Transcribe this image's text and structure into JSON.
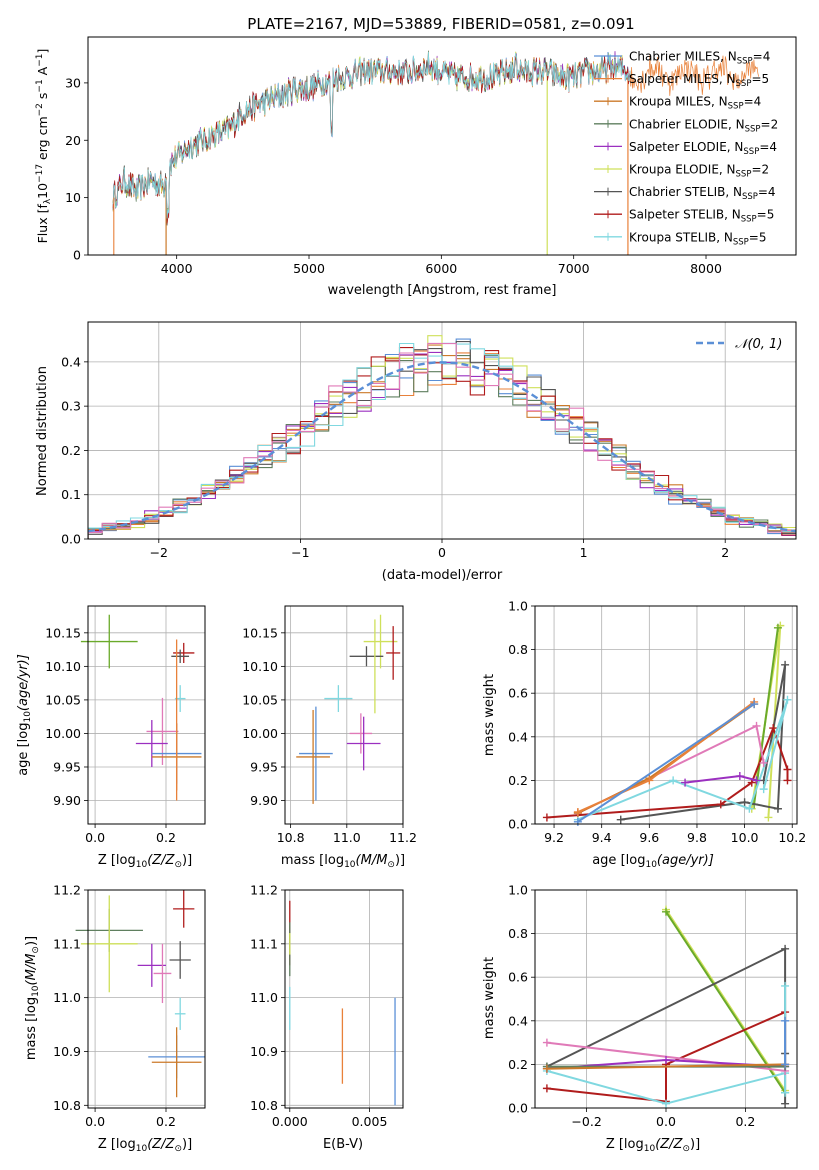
{
  "figure_title": "PLATE=2167, MJD=53889, FIBERID=0581, z=0.091",
  "colors": {
    "Chabrier MILES": "#5b8fd6",
    "Salpeter MILES": "#e8813a",
    "Kroupa MILES": "#cc7a2a",
    "Chabrier ELODIE": "#5f7f5f",
    "Salpeter ELODIE": "#9b30c0",
    "Kroupa ELODIE": "#cfe05a",
    "Chabrier STELIB": "#555555",
    "Salpeter STELIB": "#b01c1c",
    "Kroupa STELIB": "#80d8e0",
    "normal": "#5b8fd6",
    "grid": "#b0b0b0",
    "extra_pink": "#e07ab8",
    "extra_green": "#6aaa2a"
  },
  "chart_data": [
    {
      "id": "spectrum",
      "type": "line",
      "xlabel": "wavelength [Angstrom, rest frame]",
      "ylabel": "Flux [f",
      "ylabel_sub": "λ",
      "ylabel_rest": "10",
      "ylabel_sup1": "−17",
      "ylabel_rest2": " erg cm",
      "ylabel_sup2": "−2",
      "ylabel_rest3": " s",
      "ylabel_sup3": "−1",
      "ylabel_rest4": " A",
      "ylabel_sup4": "−1",
      "ylabel_end": "]",
      "xlim": [
        3330,
        8680
      ],
      "ylim": [
        0,
        38
      ],
      "xticks": [
        4000,
        5000,
        6000,
        7000,
        8000
      ],
      "yticks": [
        0,
        10,
        20,
        30
      ],
      "legend": [
        {
          "label": "Chabrier MILES, N",
          "sub": "SSP",
          "tail": "=4"
        },
        {
          "label": "Salpeter MILES, N",
          "sub": "SSP",
          "tail": "=5"
        },
        {
          "label": "Kroupa MILES, N",
          "sub": "SSP",
          "tail": "=4"
        },
        {
          "label": "Chabrier ELODIE, N",
          "sub": "SSP",
          "tail": "=2"
        },
        {
          "label": "Salpeter ELODIE, N",
          "sub": "SSP",
          "tail": "=4"
        },
        {
          "label": "Kroupa ELODIE, N",
          "sub": "SSP",
          "tail": "=2"
        },
        {
          "label": "Chabrier STELIB, N",
          "sub": "SSP",
          "tail": "=4"
        },
        {
          "label": "Salpeter STELIB, N",
          "sub": "SSP",
          "tail": "=5"
        },
        {
          "label": "Kroupa STELIB, N",
          "sub": "SSP",
          "tail": "=5"
        }
      ],
      "legend_position": "top-right",
      "continuum": [
        [
          3520,
          10
        ],
        [
          3600,
          13
        ],
        [
          3700,
          11
        ],
        [
          3800,
          13
        ],
        [
          3900,
          12
        ],
        [
          3950,
          16
        ],
        [
          4000,
          17
        ],
        [
          4100,
          19
        ],
        [
          4200,
          20
        ],
        [
          4300,
          21
        ],
        [
          4400,
          22
        ],
        [
          4500,
          25
        ],
        [
          4600,
          26
        ],
        [
          4700,
          27
        ],
        [
          4800,
          28
        ],
        [
          4900,
          29
        ],
        [
          5000,
          29
        ],
        [
          5100,
          30
        ],
        [
          5200,
          31
        ],
        [
          5300,
          31
        ],
        [
          5400,
          32
        ],
        [
          5500,
          32
        ],
        [
          5600,
          32
        ],
        [
          5700,
          32
        ],
        [
          5800,
          32
        ],
        [
          5900,
          33
        ],
        [
          6000,
          32
        ],
        [
          6100,
          31
        ],
        [
          6200,
          31
        ],
        [
          6300,
          31
        ],
        [
          6400,
          31
        ],
        [
          6500,
          32
        ],
        [
          6600,
          32
        ],
        [
          6700,
          32
        ],
        [
          6800,
          32
        ],
        [
          6900,
          31
        ],
        [
          7000,
          31
        ],
        [
          7100,
          32
        ],
        [
          7200,
          32
        ],
        [
          7300,
          33
        ],
        [
          7420,
          32
        ]
      ],
      "spectrum_range": [
        3520,
        8400
      ],
      "cutoffs": [
        {
          "series": "Kroupa ELODIE",
          "x": 6800
        },
        {
          "series": "Salpeter MILES",
          "x": 7410
        },
        {
          "series": "Kroupa MILES",
          "x": 3920
        }
      ]
    },
    {
      "id": "residuals",
      "type": "histogram",
      "xlabel": "(data-model)/error",
      "ylabel": "Normed distribution",
      "xlim": [
        -2.5,
        2.5
      ],
      "ylim": [
        0,
        0.49
      ],
      "xticks": [
        -2,
        -1,
        0,
        1,
        2
      ],
      "xtick_labels": [
        "−2",
        "−1",
        "0",
        "1",
        "2"
      ],
      "yticks": [
        0.0,
        0.1,
        0.2,
        0.3,
        0.4
      ],
      "ytick_labels": [
        "0.0",
        "0.1",
        "0.2",
        "0.3",
        "0.4"
      ],
      "bin_width": 0.1,
      "legend": "𝒩(0, 1)",
      "legend_position": "top-right"
    },
    {
      "id": "age_vs_Z",
      "type": "errorbar",
      "xlabel": "Z [log",
      "xlabel_sub": "10",
      "xlabel_rest": "(Z/Z",
      "xlabel_sub2": "⊙",
      "xlabel_end": ")]",
      "ylabel": "age  [log",
      "ylabel_sub": "10",
      "ylabel_rest": "(age/yr)]",
      "xlim": [
        -0.02,
        0.31
      ],
      "ylim": [
        9.865,
        10.19
      ],
      "xticks": [
        0.0,
        0.2
      ],
      "xtick_labels": [
        "0.0",
        "0.2"
      ],
      "yticks": [
        9.9,
        9.95,
        10.0,
        10.05,
        10.1,
        10.15
      ],
      "ytick_labels": [
        "9.90",
        "9.95",
        "10.00",
        "10.05",
        "10.10",
        "10.15"
      ],
      "points": [
        {
          "c": "extra_green",
          "x": 0.04,
          "y": 10.137,
          "xe": 0.08,
          "ye": 0.04
        },
        {
          "c": "Salpeter STELIB",
          "x": 0.25,
          "y": 10.12,
          "xe": 0.03,
          "ye": 0.015
        },
        {
          "c": "Chabrier STELIB",
          "x": 0.24,
          "y": 10.115,
          "xe": 0.025,
          "ye": 0.01
        },
        {
          "c": "Kroupa STELIB",
          "x": 0.24,
          "y": 10.052,
          "xe": 0.015,
          "ye": 0.02
        },
        {
          "c": "extra_pink",
          "x": 0.19,
          "y": 10.003,
          "xe": 0.045,
          "ye": 0.05
        },
        {
          "c": "Salpeter ELODIE",
          "x": 0.16,
          "y": 9.985,
          "xe": 0.045,
          "ye": 0.035
        },
        {
          "c": "Chabrier MILES",
          "x": 0.23,
          "y": 9.97,
          "xe": 0.07,
          "ye": 0.045
        },
        {
          "c": "Kroupa MILES",
          "x": 0.23,
          "y": 9.965,
          "xe": 0.07,
          "ye": 0.05
        },
        {
          "c": "Salpeter MILES",
          "x": 0.23,
          "y": 10.02,
          "xe": 0.0,
          "ye": 0.12
        }
      ]
    },
    {
      "id": "age_vs_mass",
      "type": "errorbar",
      "xlabel": "mass [log",
      "xlabel_sub": "10",
      "xlabel_rest": "(M/M",
      "xlabel_sub2": "⊙",
      "xlabel_end": ")]",
      "xlim": [
        10.78,
        11.2
      ],
      "ylim": [
        9.865,
        10.19
      ],
      "xticks": [
        10.8,
        11.0,
        11.2
      ],
      "xtick_labels": [
        "10.8",
        "11.0",
        "11.2"
      ],
      "yticks": [
        9.9,
        9.95,
        10.0,
        10.05,
        10.1,
        10.15
      ],
      "ytick_labels": [
        "9.90",
        "9.95",
        "10.00",
        "10.05",
        "10.10",
        "10.15"
      ],
      "points": [
        {
          "c": "Kroupa ELODIE",
          "x": 11.12,
          "y": 10.137,
          "xe": 0.06,
          "ye": 0.04
        },
        {
          "c": "Salpeter STELIB",
          "x": 11.165,
          "y": 10.12,
          "xe": 0.025,
          "ye": 0.04
        },
        {
          "c": "Chabrier STELIB",
          "x": 11.07,
          "y": 10.115,
          "xe": 0.06,
          "ye": 0.015
        },
        {
          "c": "Kroupa STELIB",
          "x": 10.97,
          "y": 10.052,
          "xe": 0.05,
          "ye": 0.02
        },
        {
          "c": "extra_pink",
          "x": 11.05,
          "y": 10.0,
          "xe": 0.04,
          "ye": 0.03
        },
        {
          "c": "Salpeter ELODIE",
          "x": 11.06,
          "y": 9.985,
          "xe": 0.06,
          "ye": 0.04
        },
        {
          "c": "Chabrier MILES",
          "x": 10.89,
          "y": 9.97,
          "xe": 0.06,
          "ye": 0.07
        },
        {
          "c": "Kroupa MILES",
          "x": 10.88,
          "y": 9.965,
          "xe": 0.06,
          "ye": 0.07
        },
        {
          "c": "Kroupa ELODIE",
          "x": 11.1,
          "y": 10.1,
          "xe": 0.0,
          "ye": 0.07
        }
      ]
    },
    {
      "id": "weight_vs_age",
      "type": "line",
      "xlabel": "age  [log",
      "xlabel_sub": "10",
      "xlabel_rest": "(age/yr)]",
      "ylabel": "mass weight",
      "xlim": [
        9.12,
        10.22
      ],
      "ylim": [
        0,
        1
      ],
      "xticks": [
        9.2,
        9.4,
        9.6,
        9.8,
        10.0,
        10.2
      ],
      "xtick_labels": [
        "9.2",
        "9.4",
        "9.6",
        "9.8",
        "10.0",
        "10.2"
      ],
      "yticks": [
        0,
        0.2,
        0.4,
        0.6,
        0.8,
        1.0
      ],
      "ytick_labels": [
        "0.0",
        "0.2",
        "0.4",
        "0.6",
        "0.8",
        "1.0"
      ],
      "series": [
        {
          "c": "Kroupa ELODIE",
          "x": [
            10.03,
            10.15,
            10.1
          ],
          "y": [
            0.07,
            0.91,
            0.03
          ]
        },
        {
          "c": "extra_green",
          "x": [
            10.04,
            10.14
          ],
          "y": [
            0.09,
            0.9
          ]
        },
        {
          "c": "Chabrier STELIB",
          "x": [
            9.48,
            10.0,
            10.14,
            10.17,
            10.08
          ],
          "y": [
            0.02,
            0.1,
            0.07,
            0.73,
            0.2
          ]
        },
        {
          "c": "Salpeter STELIB",
          "x": [
            9.17,
            9.9,
            10.03,
            10.12,
            10.18,
            10.18
          ],
          "y": [
            0.03,
            0.09,
            0.19,
            0.44,
            0.25,
            0.2
          ]
        },
        {
          "c": "Kroupa STELIB",
          "x": [
            9.3,
            9.7,
            10.02,
            10.18,
            10.08
          ],
          "y": [
            0.02,
            0.2,
            0.07,
            0.57,
            0.16
          ]
        },
        {
          "c": "extra_pink",
          "x": [
            9.3,
            10.05,
            10.08
          ],
          "y": [
            0.05,
            0.45,
            0.28
          ]
        },
        {
          "c": "Salpeter ELODIE",
          "x": [
            9.75,
            9.98,
            10.05
          ],
          "y": [
            0.19,
            0.22,
            0.2
          ]
        },
        {
          "c": "Kroupa MILES",
          "x": [
            9.3,
            9.6,
            10.04
          ],
          "y": [
            0.05,
            0.21,
            0.55
          ]
        },
        {
          "c": "Salpeter MILES",
          "x": [
            9.3,
            9.6,
            10.04
          ],
          "y": [
            0.055,
            0.2,
            0.56
          ]
        },
        {
          "c": "Chabrier MILES",
          "x": [
            9.3,
            10.04
          ],
          "y": [
            0.01,
            0.55
          ]
        }
      ]
    },
    {
      "id": "mass_vs_Z",
      "type": "errorbar",
      "xlabel": "Z [log",
      "xlabel_sub": "10",
      "xlabel_rest": "(Z/Z",
      "xlabel_sub2": "⊙",
      "xlabel_end": ")]",
      "ylabel": "mass [log",
      "ylabel_sub": "10",
      "ylabel_rest": "(M/M",
      "ylabel_sub2": "⊙",
      "ylabel_end": ")]",
      "xlim": [
        -0.02,
        0.31
      ],
      "ylim": [
        10.795,
        11.2
      ],
      "xticks": [
        0.0,
        0.2
      ],
      "xtick_labels": [
        "0.0",
        "0.2"
      ],
      "yticks": [
        10.8,
        10.9,
        11.0,
        11.1,
        11.2
      ],
      "ytick_labels": [
        "10.8",
        "10.9",
        "11.0",
        "11.1",
        "11.2"
      ],
      "points": [
        {
          "c": "Chabrier ELODIE",
          "x": 0.04,
          "y": 11.125,
          "xe": 0.095,
          "ye": 0.04
        },
        {
          "c": "Kroupa ELODIE",
          "x": 0.04,
          "y": 11.1,
          "xe": 0.08,
          "ye": 0.09
        },
        {
          "c": "Salpeter STELIB",
          "x": 0.25,
          "y": 11.165,
          "xe": 0.03,
          "ye": 0.035
        },
        {
          "c": "Chabrier STELIB",
          "x": 0.24,
          "y": 11.07,
          "xe": 0.03,
          "ye": 0.035
        },
        {
          "c": "Salpeter ELODIE",
          "x": 0.16,
          "y": 11.06,
          "xe": 0.04,
          "ye": 0.04
        },
        {
          "c": "extra_pink",
          "x": 0.19,
          "y": 11.045,
          "xe": 0.025,
          "ye": 0.055
        },
        {
          "c": "Kroupa STELIB",
          "x": 0.24,
          "y": 10.97,
          "xe": 0.015,
          "ye": 0.03
        },
        {
          "c": "Chabrier MILES",
          "x": 0.23,
          "y": 10.89,
          "xe": 0.08,
          "ye": 0.04
        },
        {
          "c": "Kroupa MILES",
          "x": 0.23,
          "y": 10.88,
          "xe": 0.07,
          "ye": 0.065
        }
      ]
    },
    {
      "id": "mass_vs_ebv",
      "type": "errorbar",
      "xlabel": "E(B-V)",
      "xlim": [
        -0.0003,
        0.0071
      ],
      "ylim": [
        10.795,
        11.2
      ],
      "xticks": [
        0.0,
        0.005
      ],
      "xtick_labels": [
        "0.000",
        "0.005"
      ],
      "yticks": [
        10.8,
        10.9,
        11.0,
        11.1,
        11.2
      ],
      "ytick_labels": [
        "10.8",
        "10.9",
        "11.0",
        "11.1",
        "11.2"
      ],
      "points": [
        {
          "c": "Salpeter STELIB",
          "x": 0.0,
          "y": 11.12,
          "xe": 0.0,
          "ye": 0.06
        },
        {
          "c": "Chabrier ELODIE",
          "x": 0.0,
          "y": 11.09,
          "xe": 0.0,
          "ye": 0.05
        },
        {
          "c": "Kroupa ELODIE",
          "x": 0.0,
          "y": 11.1,
          "xe": 0.0,
          "ye": 0.02
        },
        {
          "c": "Kroupa STELIB",
          "x": 0.0,
          "y": 10.98,
          "xe": 0.0,
          "ye": 0.04
        },
        {
          "c": "Salpeter MILES",
          "x": 0.0033,
          "y": 10.91,
          "xe": 0.0,
          "ye": 0.07
        },
        {
          "c": "Chabrier MILES",
          "x": 0.0066,
          "y": 10.9,
          "xe": 0.0,
          "ye": 0.1
        }
      ]
    },
    {
      "id": "weight_vs_Z",
      "type": "line",
      "xlabel": "Z [log",
      "xlabel_sub": "10",
      "xlabel_rest": "(Z/Z",
      "xlabel_sub2": "⊙",
      "xlabel_end": ")]",
      "ylabel": "mass weight",
      "xlim": [
        -0.33,
        0.33
      ],
      "ylim": [
        0,
        1
      ],
      "xticks": [
        -0.2,
        0.0,
        0.2
      ],
      "xtick_labels": [
        "−0.2",
        "0.0",
        "0.2"
      ],
      "yticks": [
        0,
        0.2,
        0.4,
        0.6,
        0.8,
        1.0
      ],
      "ytick_labels": [
        "0.0",
        "0.2",
        "0.4",
        "0.6",
        "0.8",
        "1.0"
      ],
      "series": [
        {
          "c": "Kroupa ELODIE",
          "x": [
            0.0,
            0.3
          ],
          "y": [
            0.91,
            0.08
          ]
        },
        {
          "c": "extra_green",
          "x": [
            0.0,
            0.3
          ],
          "y": [
            0.9,
            0.07
          ]
        },
        {
          "c": "Chabrier STELIB",
          "x": [
            -0.3,
            0.3,
            0.3,
            0.3
          ],
          "y": [
            0.19,
            0.73,
            0.25,
            0.02
          ]
        },
        {
          "c": "Salpeter STELIB",
          "x": [
            -0.3,
            0.0,
            0.0,
            0.3,
            0.3
          ],
          "y": [
            0.09,
            0.03,
            0.2,
            0.44,
            0.2
          ]
        },
        {
          "c": "Kroupa STELIB",
          "x": [
            -0.3,
            0.0,
            0.3,
            0.3,
            0.3
          ],
          "y": [
            0.17,
            0.02,
            0.16,
            0.56,
            0.07
          ]
        },
        {
          "c": "extra_pink",
          "x": [
            -0.3,
            0.3
          ],
          "y": [
            0.3,
            0.17
          ]
        },
        {
          "c": "Salpeter ELODIE",
          "x": [
            -0.3,
            0.0,
            0.3
          ],
          "y": [
            0.18,
            0.22,
            0.19
          ]
        },
        {
          "c": "Chabrier ELODIE",
          "x": [
            -0.3,
            0.3
          ],
          "y": [
            0.19,
            0.19
          ]
        },
        {
          "c": "Kroupa MILES",
          "x": [
            -0.3,
            0.3
          ],
          "y": [
            0.18,
            0.2
          ]
        },
        {
          "c": "Chabrier MILES",
          "x": [
            0.3,
            0.3
          ],
          "y": [
            0.4,
            0.2
          ]
        }
      ]
    }
  ]
}
